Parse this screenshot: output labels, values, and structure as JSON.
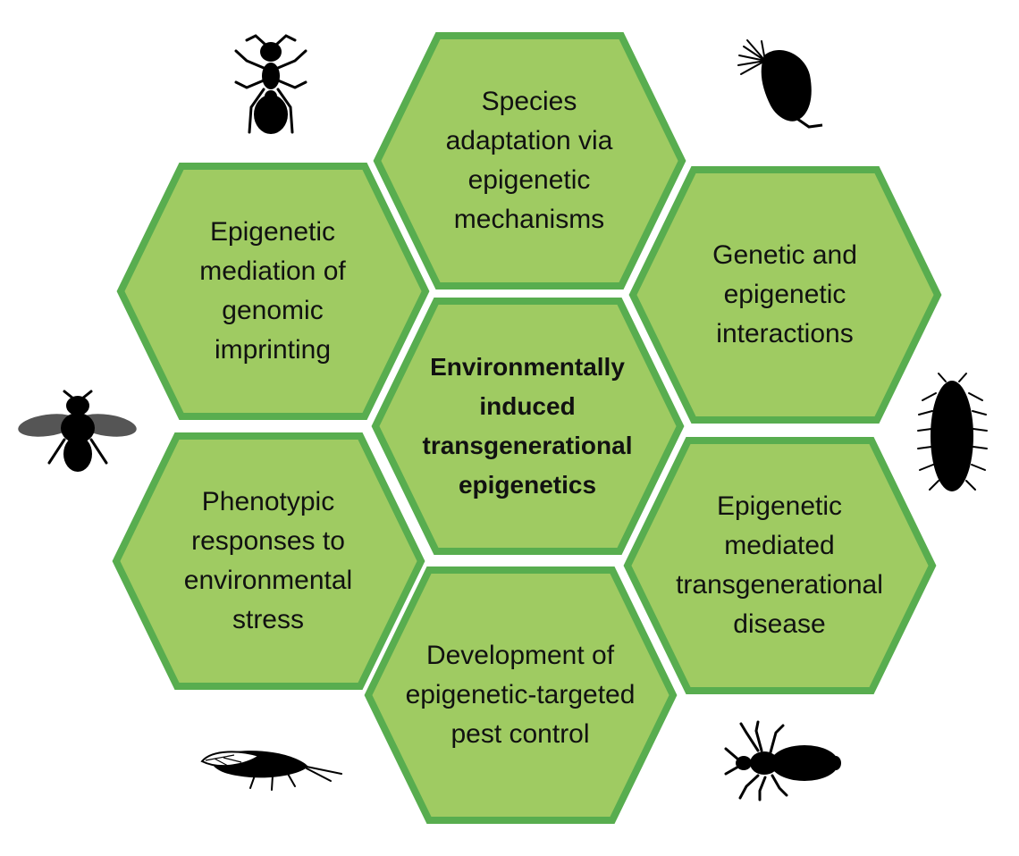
{
  "diagram": {
    "center": {
      "lines": [
        "Environmentally",
        "induced",
        "transgenerational",
        "epigenetics"
      ]
    },
    "hexagons": [
      {
        "id": "top",
        "lines": [
          "Species",
          "adaptation via",
          "epigenetic",
          "mechanisms"
        ]
      },
      {
        "id": "upper-left",
        "lines": [
          "Epigenetic",
          "mediation of",
          "genomic",
          "imprinting"
        ]
      },
      {
        "id": "upper-right",
        "lines": [
          "Genetic and",
          "epigenetic",
          "interactions"
        ]
      },
      {
        "id": "lower-left",
        "lines": [
          "Phenotypic",
          "responses to",
          "environmental",
          "stress"
        ]
      },
      {
        "id": "lower-right",
        "lines": [
          "Epigenetic",
          "mediated",
          "transgenerational",
          "disease"
        ]
      },
      {
        "id": "bottom",
        "lines": [
          "Development of",
          "epigenetic-targeted",
          "pest control"
        ]
      }
    ],
    "colors": {
      "hex_fill": "#9fcb62",
      "hex_border": "#58ad4f",
      "text": "#111111",
      "silhouette": "#000000"
    },
    "icons": [
      "ant-icon",
      "daphnia-icon",
      "bee-icon",
      "woodlouse-icon",
      "cicada-icon",
      "louse-icon"
    ]
  }
}
